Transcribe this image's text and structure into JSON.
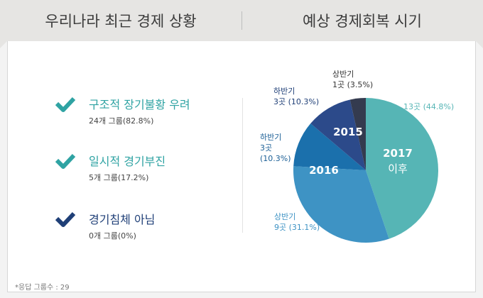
{
  "header": {
    "left_title": "우리나라 최근 경제 상황",
    "right_title": "예상 경제회복 시기"
  },
  "colors": {
    "teal": "#2fa3a3",
    "navy": "#1f3f77",
    "slice_2017": "#56b5b5",
    "slice_2016": "#3e93c4",
    "slice_2016_h2": "#1b70ac",
    "slice_2015_h2": "#2c4a8a",
    "slice_2015_h1": "#343b4f"
  },
  "situation": {
    "items": [
      {
        "title": "구조적 장기불황 우려",
        "sub": "24개 그룹(82.8%)",
        "icon": "check-icon",
        "color": "#2fa3a3"
      },
      {
        "title": "일시적 경기부진",
        "sub": "5개 그룹(17.2%)",
        "icon": "check-icon",
        "color": "#2fa3a3"
      },
      {
        "title": "경기침체 아님",
        "sub": "0개 그룹(0%)",
        "icon": "check-icon",
        "color": "#1f3f77"
      }
    ]
  },
  "chart_data": {
    "type": "pie",
    "start_angle_deg": 0,
    "slices": [
      {
        "group": "2017 이후",
        "group_lines": [
          "2017",
          "이후"
        ],
        "label": "13곳 (44.8%)",
        "label_lines": [
          "13곳 (44.8%)"
        ],
        "count": 13,
        "value": 44.8,
        "color": "#56b5b5",
        "label_color": "#56b5b5"
      },
      {
        "group": "2016",
        "group_lines": [
          "2016"
        ],
        "label": "상반기 9곳 (31.1%)",
        "label_lines": [
          "상반기",
          "9곳 (31.1%)"
        ],
        "count": 9,
        "value": 31.1,
        "color": "#3e93c4",
        "label_color": "#3e93c4"
      },
      {
        "group": "2016",
        "group_lines": [],
        "label": "하반기 3곳 (10.3%)",
        "label_lines": [
          "하반기",
          "3곳",
          "(10.3%)"
        ],
        "count": 3,
        "value": 10.3,
        "color": "#1b70ac",
        "label_color": "#1b5f96"
      },
      {
        "group": "2015",
        "group_lines": [
          "2015"
        ],
        "label": "하반기 3곳 (10.3%)",
        "label_lines": [
          "하반기",
          "3곳 (10.3%)"
        ],
        "count": 3,
        "value": 10.3,
        "color": "#2c4a8a",
        "label_color": "#1f3f77"
      },
      {
        "group": "2015",
        "group_lines": [],
        "label": "상반기 1곳 (3.5%)",
        "label_lines": [
          "상반기",
          "1곳 (3.5%)"
        ],
        "count": 1,
        "value": 3.5,
        "color": "#343b4f",
        "label_color": "#333333"
      }
    ]
  },
  "footnote": "*응답 그룹수 : 29"
}
